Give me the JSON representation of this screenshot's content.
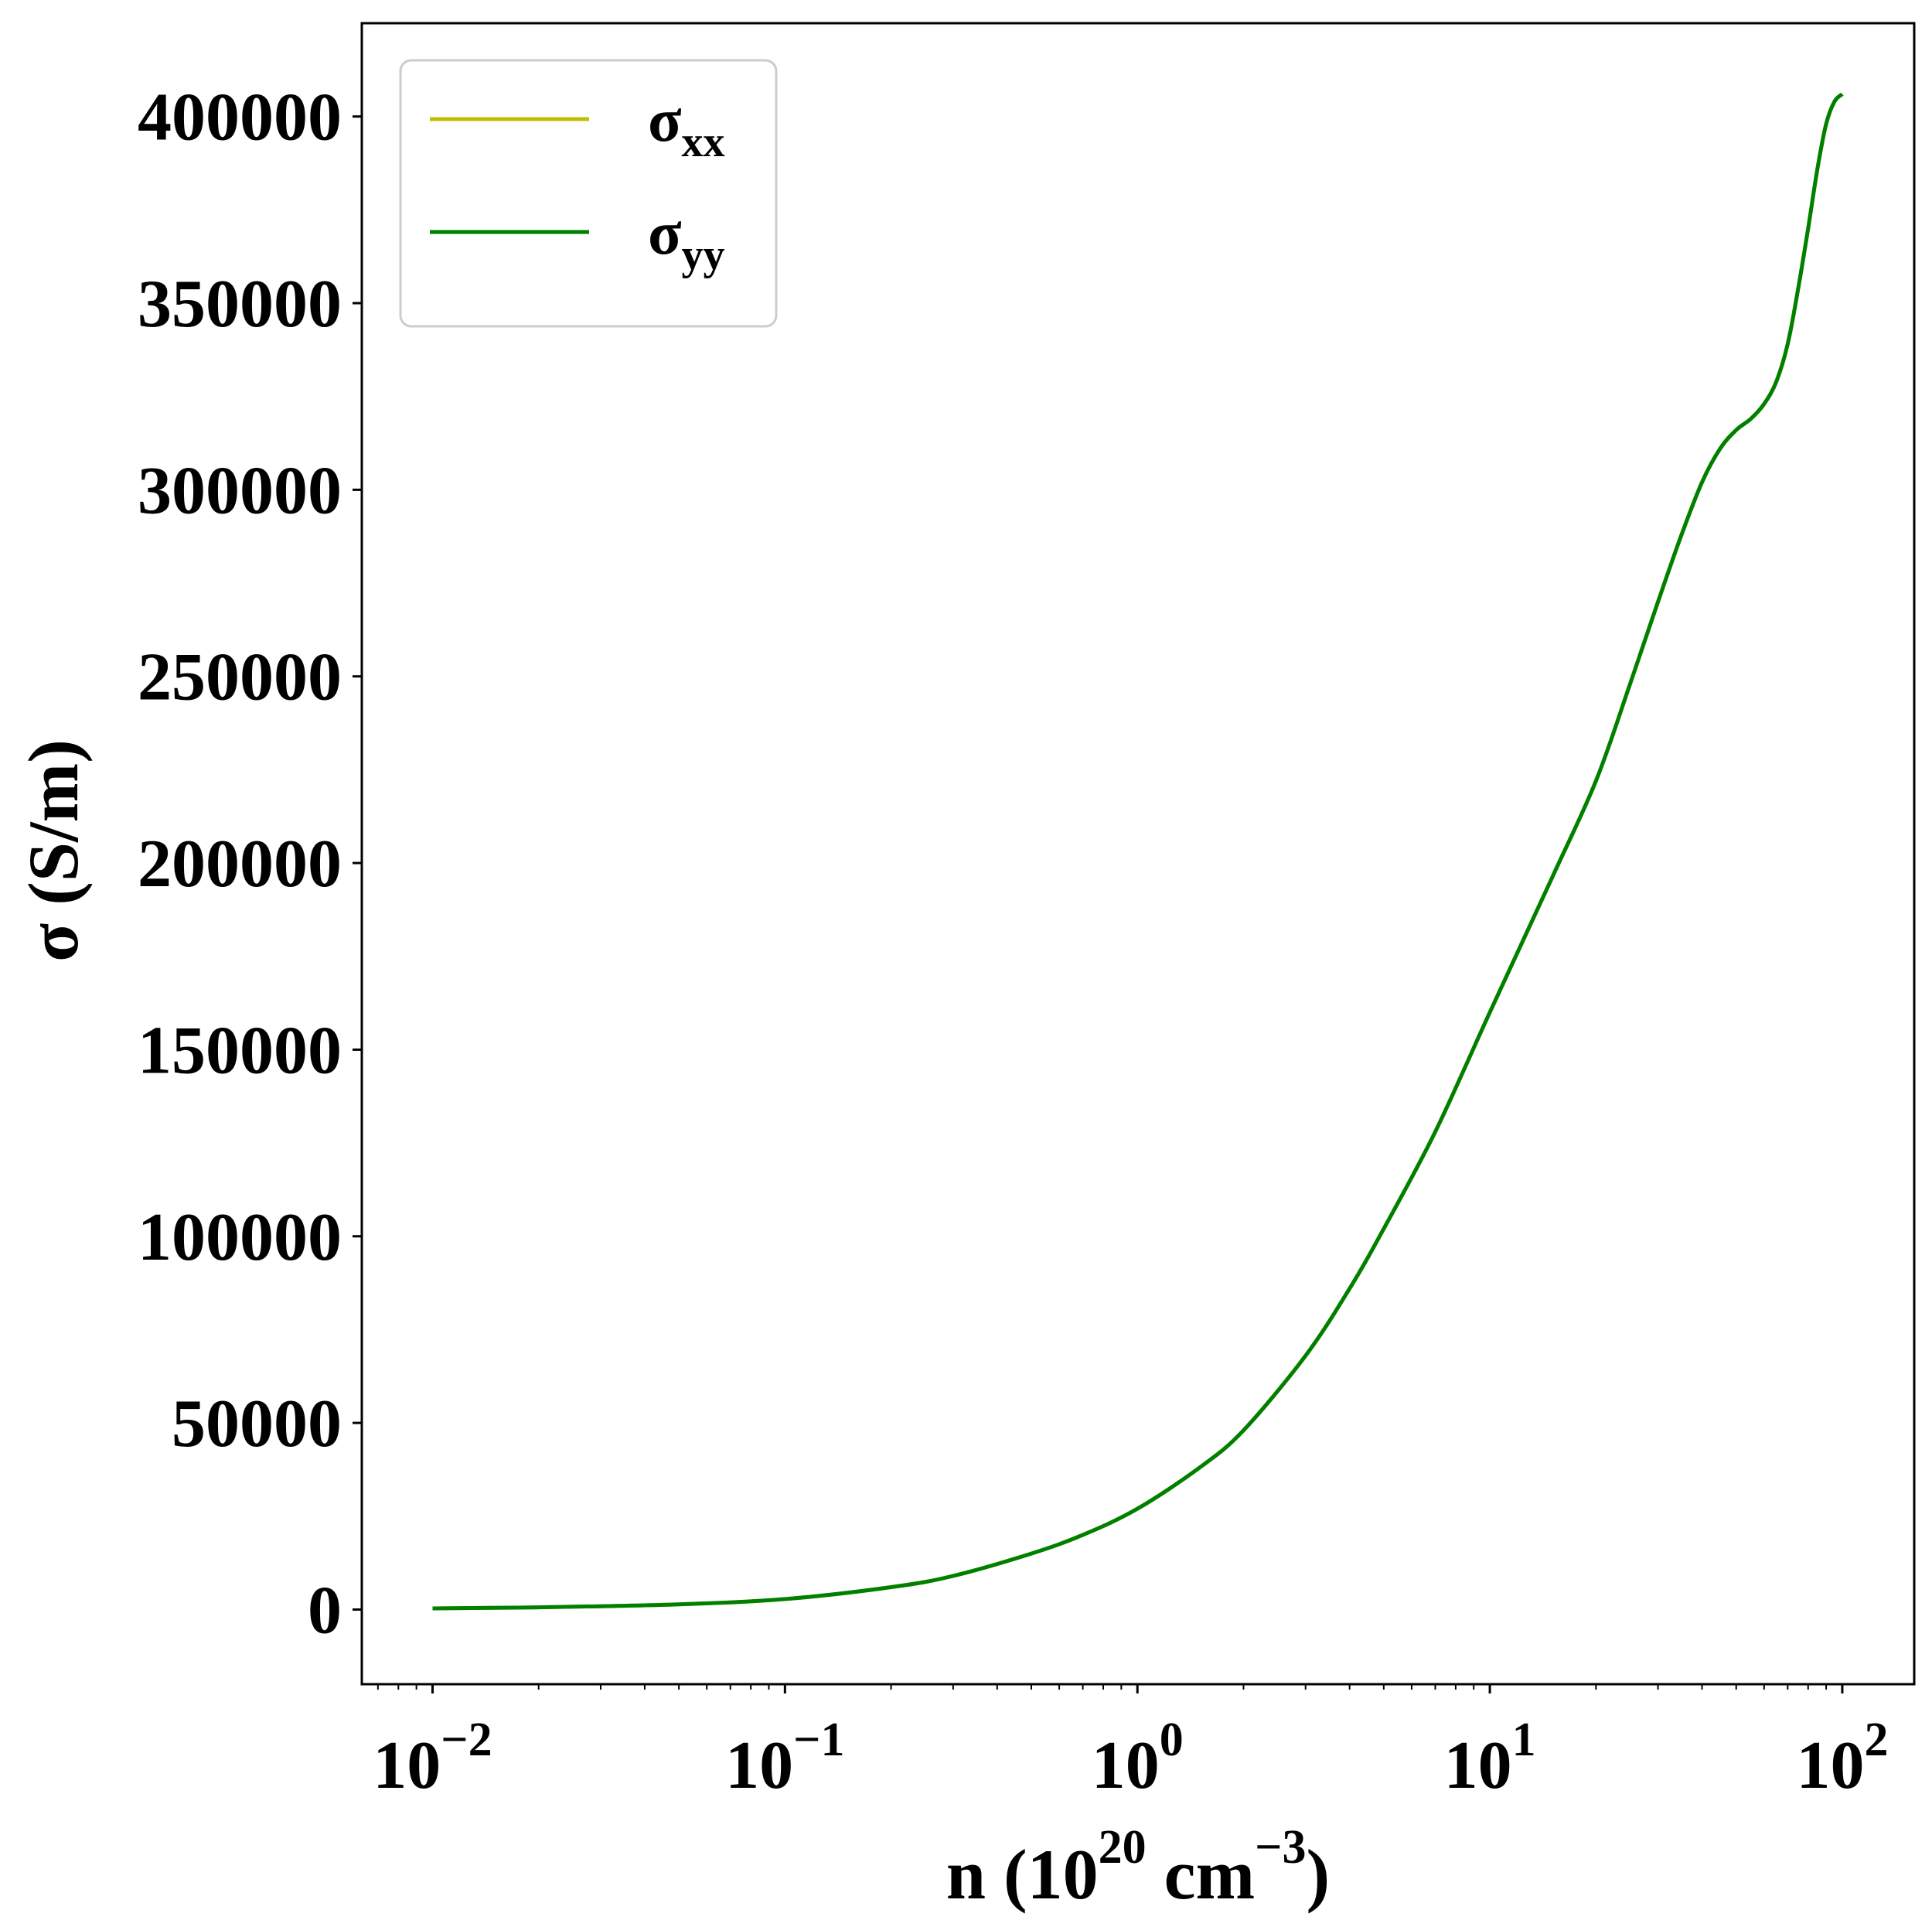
{
  "chart_data": {
    "type": "line",
    "xscale": "log",
    "xlim": [
      0.0063,
      160
    ],
    "ylim": [
      -20000,
      425000
    ],
    "xlabel": {
      "prefix": "n (10",
      "sup1": "20",
      "middle": " cm",
      "sup2": "−3",
      "suffix": ")"
    },
    "ylabel": "σ (S/m)",
    "x_ticks": [
      {
        "base": "10",
        "exp": "−2",
        "value": 0.01
      },
      {
        "base": "10",
        "exp": "−1",
        "value": 0.1
      },
      {
        "base": "10",
        "exp": "0",
        "value": 1
      },
      {
        "base": "10",
        "exp": "1",
        "value": 10
      },
      {
        "base": "10",
        "exp": "2",
        "value": 100
      }
    ],
    "y_ticks": [
      {
        "label": "0",
        "value": 0
      },
      {
        "label": "50000",
        "value": 50000
      },
      {
        "label": "100000",
        "value": 100000
      },
      {
        "label": "150000",
        "value": 150000
      },
      {
        "label": "200000",
        "value": 200000
      },
      {
        "label": "250000",
        "value": 250000
      },
      {
        "label": "300000",
        "value": 300000
      },
      {
        "label": "350000",
        "value": 350000
      },
      {
        "label": "400000",
        "value": 400000
      }
    ],
    "legend": {
      "position": "upper-left",
      "entries": [
        {
          "symbol": "σ",
          "sub": "xx",
          "color": "#bfbf00"
        },
        {
          "symbol": "σ",
          "sub": "yy",
          "color": "#008000"
        }
      ]
    },
    "grid": false,
    "x": [
      0.01,
      0.02,
      0.05,
      0.1,
      0.2,
      0.3,
      0.5,
      0.7,
      1.0,
      1.5,
      2.0,
      3.0,
      4.0,
      5.0,
      7.0,
      10.0,
      15.0,
      20.0,
      25.0,
      30.0,
      35.0,
      40.0,
      45.0,
      50.0,
      55.0,
      60.0,
      65.0,
      70.0,
      75.0,
      80.0,
      85.0,
      90.0,
      95.0,
      100.0
    ],
    "series": [
      {
        "name": "σxx",
        "color": "#bfbf00",
        "values": [
          300,
          600,
          1400,
          2800,
          6000,
          9000,
          15000,
          20000,
          27000,
          38000,
          48000,
          68000,
          86000,
          102000,
          128000,
          160000,
          196000,
          222000,
          248000,
          270000,
          288000,
          302000,
          311000,
          316000,
          319000,
          323000,
          329000,
          339000,
          354000,
          370000,
          386000,
          398000,
          404000,
          406000
        ]
      },
      {
        "name": "σyy",
        "color": "#008000",
        "values": [
          300,
          600,
          1400,
          2800,
          6000,
          9000,
          15000,
          20000,
          27000,
          38000,
          48000,
          68000,
          86000,
          102000,
          128000,
          160000,
          196000,
          222000,
          248000,
          270000,
          288000,
          302000,
          311000,
          316000,
          319000,
          323000,
          329000,
          339000,
          354000,
          370000,
          386000,
          398000,
          404000,
          406000
        ]
      }
    ]
  }
}
